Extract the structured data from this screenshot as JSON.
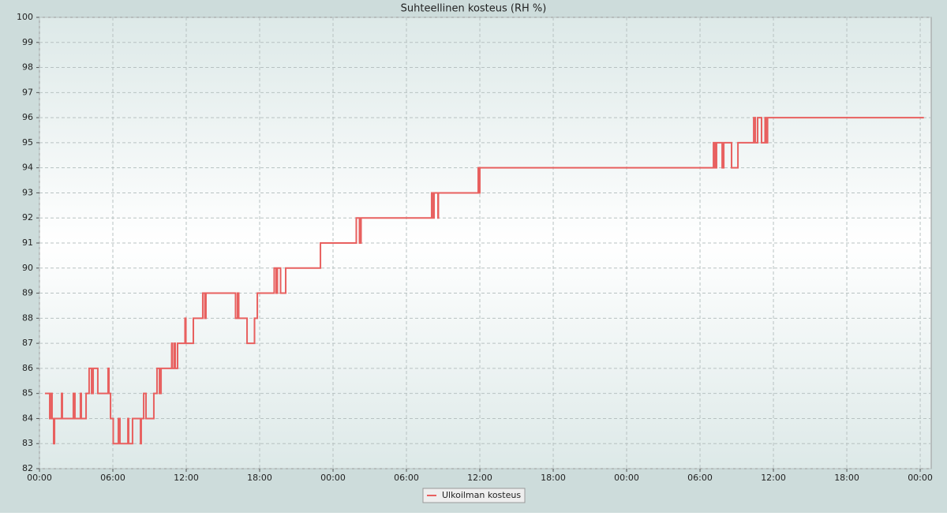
{
  "chart_data": {
    "type": "line",
    "title": "Suhteellinen kosteus (RH %)",
    "xlim": [
      0,
      72.9
    ],
    "ylim": [
      82,
      100
    ],
    "xticks": [
      {
        "value": 0,
        "label": "00:00"
      },
      {
        "value": 6,
        "label": "06:00"
      },
      {
        "value": 12,
        "label": "12:00"
      },
      {
        "value": 18,
        "label": "18:00"
      },
      {
        "value": 24,
        "label": "00:00"
      },
      {
        "value": 30,
        "label": "06:00"
      },
      {
        "value": 36,
        "label": "12:00"
      },
      {
        "value": 42,
        "label": "18:00"
      },
      {
        "value": 48,
        "label": "00:00"
      },
      {
        "value": 54,
        "label": "06:00"
      },
      {
        "value": 60,
        "label": "12:00"
      },
      {
        "value": 66,
        "label": "18:00"
      },
      {
        "value": 72,
        "label": "00:00"
      }
    ],
    "yticks": [
      82,
      83,
      84,
      85,
      86,
      87,
      88,
      89,
      90,
      91,
      92,
      93,
      94,
      95,
      96,
      97,
      98,
      99,
      100
    ],
    "grid": true,
    "legend": "bottom",
    "series": [
      {
        "name": "Ulkoilman kosteus",
        "color": "#e8605f",
        "x": [
          0.45,
          0.84,
          0.84,
          0.97,
          0.97,
          1.03,
          1.03,
          1.16,
          1.16,
          1.23,
          1.23,
          1.81,
          1.81,
          1.87,
          1.87,
          2.77,
          2.77,
          2.9,
          2.9,
          3.35,
          3.35,
          3.42,
          3.42,
          3.81,
          3.81,
          4.06,
          4.06,
          4.26,
          4.26,
          4.39,
          4.39,
          4.77,
          4.77,
          5.61,
          5.61,
          5.68,
          5.68,
          5.81,
          5.81,
          6.03,
          6.03,
          6.45,
          6.45,
          6.58,
          6.58,
          7.23,
          7.23,
          7.29,
          7.29,
          7.61,
          7.61,
          8.26,
          8.26,
          8.32,
          8.32,
          8.52,
          8.52,
          8.71,
          8.71,
          9.35,
          9.35,
          9.61,
          9.61,
          9.81,
          9.81,
          9.94,
          9.94,
          10.81,
          10.81,
          10.87,
          10.87,
          11.03,
          11.03,
          11.1,
          11.1,
          11.29,
          11.29,
          11.9,
          11.9,
          11.97,
          11.97,
          12.58,
          12.58,
          13.35,
          13.35,
          13.52,
          13.52,
          13.61,
          13.61,
          16.03,
          16.03,
          16.19,
          16.19,
          16.29,
          16.29,
          16.97,
          16.97,
          17.58,
          17.58,
          17.81,
          17.81,
          19.19,
          19.19,
          19.35,
          19.35,
          19.45,
          19.45,
          19.71,
          19.71,
          20.13,
          20.13,
          22.97,
          22.97,
          25.9,
          25.9,
          26.16,
          26.16,
          26.29,
          26.29,
          32.06,
          32.06,
          32.19,
          32.19,
          32.26,
          32.26,
          32.58,
          32.58,
          32.61,
          32.61,
          35.87,
          35.87,
          35.94,
          35.94,
          36.0,
          36.0,
          55.1,
          55.1,
          55.23,
          55.23,
          55.35,
          55.35,
          55.81,
          55.81,
          55.94,
          55.94,
          56.58,
          56.58,
          57.1,
          57.1,
          58.39,
          58.39,
          58.52,
          58.52,
          58.71,
          58.71,
          59.03,
          59.03,
          59.32,
          59.32,
          59.39,
          59.39,
          59.52,
          59.52,
          72.3
        ],
        "values": [
          85,
          85,
          84,
          84,
          85,
          85,
          84,
          84,
          83,
          83,
          84,
          84,
          85,
          85,
          84,
          84,
          85,
          85,
          84,
          84,
          85,
          85,
          84,
          84,
          85,
          85,
          86,
          86,
          85,
          85,
          86,
          86,
          85,
          85,
          86,
          86,
          85,
          85,
          84,
          84,
          83,
          83,
          84,
          84,
          83,
          83,
          84,
          84,
          83,
          83,
          84,
          84,
          83,
          83,
          84,
          84,
          85,
          85,
          84,
          84,
          85,
          85,
          86,
          86,
          85,
          85,
          86,
          86,
          87,
          87,
          86,
          86,
          87,
          87,
          86,
          86,
          87,
          87,
          88,
          88,
          87,
          87,
          88,
          88,
          89,
          89,
          88,
          88,
          89,
          89,
          88,
          88,
          89,
          89,
          88,
          88,
          87,
          87,
          88,
          88,
          89,
          89,
          90,
          90,
          89,
          89,
          90,
          90,
          89,
          89,
          90,
          90,
          91,
          91,
          92,
          92,
          91,
          91,
          92,
          92,
          93,
          93,
          92,
          92,
          93,
          93,
          92,
          92,
          93,
          93,
          94,
          94,
          93,
          93,
          94,
          94,
          95,
          95,
          94,
          94,
          95,
          95,
          94,
          94,
          95,
          95,
          94,
          94,
          95,
          95,
          96,
          96,
          95,
          95,
          96,
          96,
          95,
          95,
          96,
          96,
          95,
          95,
          96,
          96
        ]
      }
    ]
  }
}
